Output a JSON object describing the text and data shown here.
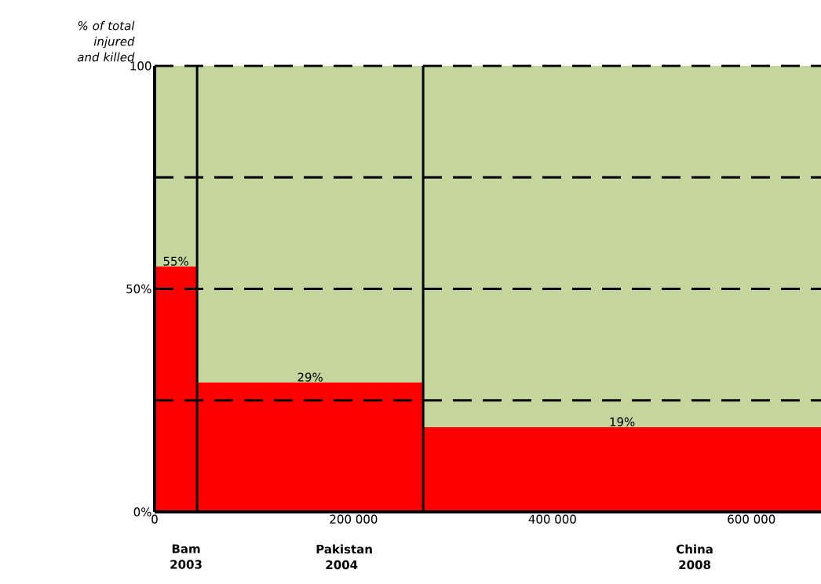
{
  "chart_data": {
    "type": "histogram",
    "ylabel": "% of total injured and killed",
    "bins": [
      0,
      42700,
      270000,
      670000
    ],
    "values": [
      55,
      29,
      19
    ],
    "value_labels": [
      "55%",
      "29%",
      "19%"
    ],
    "color": "#ff0000",
    "xlim": [
      0,
      670000
    ],
    "xticks": [
      0,
      {
        "value": 200000,
        "label": "200 000"
      },
      {
        "value": 400000,
        "label": "400 000"
      },
      {
        "value": 600000,
        "label": "600 000"
      }
    ],
    "ylim": [
      0,
      100
    ],
    "yticks": [
      {
        "value": 0,
        "label": "0%"
      },
      {
        "value": 25,
        "label": null
      },
      {
        "value": 50,
        "label": "50%"
      },
      {
        "value": 75,
        "label": null
      },
      {
        "value": 100,
        "label": "100"
      }
    ],
    "grid": "y",
    "bands": [
      {
        "axis": "y",
        "from": 0,
        "to": 100,
        "color": "#c4d69c"
      }
    ],
    "ref_lines": [
      {
        "axis": "x",
        "value": 42700
      },
      {
        "axis": "x",
        "value": 270000
      }
    ],
    "annotations": [
      {
        "text": "Bam 2003",
        "x": 31600,
        "y": 0
      },
      {
        "text": "Pakistan 2004",
        "x": 188000,
        "y": 0
      },
      {
        "text": "China 2008",
        "x": 543000,
        "y": 0
      }
    ]
  }
}
